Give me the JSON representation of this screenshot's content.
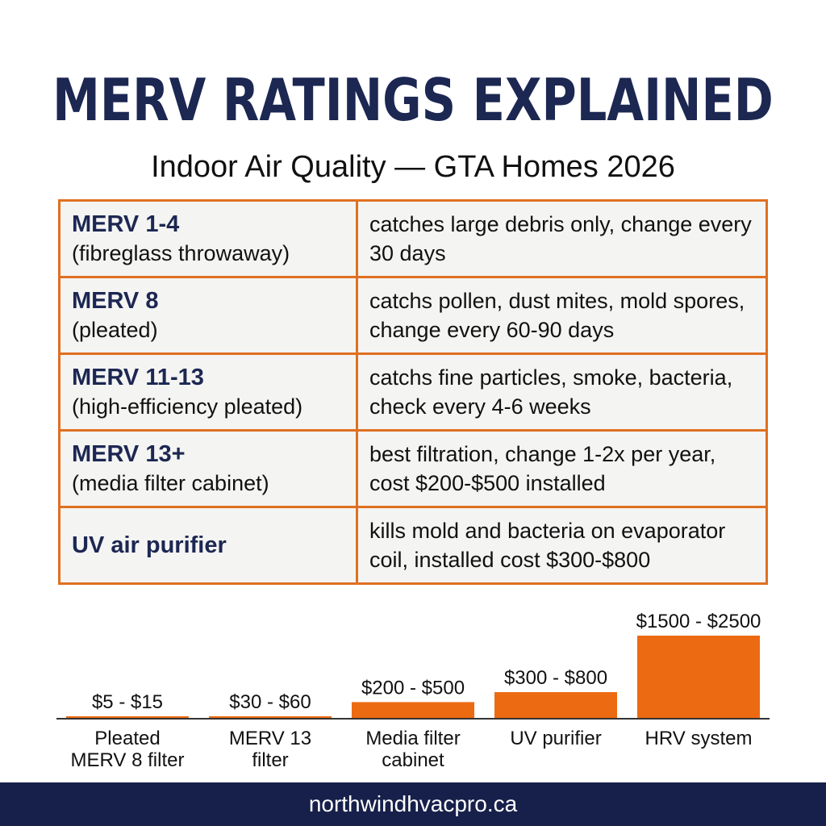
{
  "header": {
    "title": "MERV RATINGS EXPLAINED",
    "subtitle": "Indoor Air Quality — GTA Homes 2026"
  },
  "table": {
    "rows": [
      {
        "name": "MERV 1-4",
        "sub": "(fibreglass throwaway)",
        "desc": "catches large debris only, change every 30 days"
      },
      {
        "name": "MERV 8",
        "sub": "(pleated)",
        "desc": "catchs pollen, dust mites, mold spores, change every 60-90 days"
      },
      {
        "name": "MERV 11-13",
        "sub": "(high-efficiency pleated)",
        "desc": "catchs fine particles, smoke, bacteria, check every 4-6 weeks"
      },
      {
        "name": "MERV 13+",
        "sub": "(media filter cabinet)",
        "desc": "best filtration, change 1-2x per year, cost $200-$500 installed"
      },
      {
        "name": "UV air purifier",
        "sub": "",
        "desc": "kills mold and bacteria on evaporator coil, installed cost $300-$800"
      }
    ]
  },
  "chart_data": {
    "type": "bar",
    "categories": [
      "Pleated\nMERV 8 filter",
      "MERV 13\nfilter",
      "Media filter\ncabinet",
      "UV purifier",
      "HRV system"
    ],
    "ranges": [
      [
        5,
        15
      ],
      [
        30,
        60
      ],
      [
        200,
        500
      ],
      [
        300,
        800
      ],
      [
        1500,
        2500
      ]
    ],
    "data_labels": [
      "$5 - $15",
      "$30 - $60",
      "$200 - $500",
      "$300 - $800",
      "$1500 - $2500"
    ],
    "bar_color": "#ec6a12",
    "grid": false,
    "legend": "none"
  },
  "footer": {
    "text": "northwindhvacpro.ca"
  }
}
